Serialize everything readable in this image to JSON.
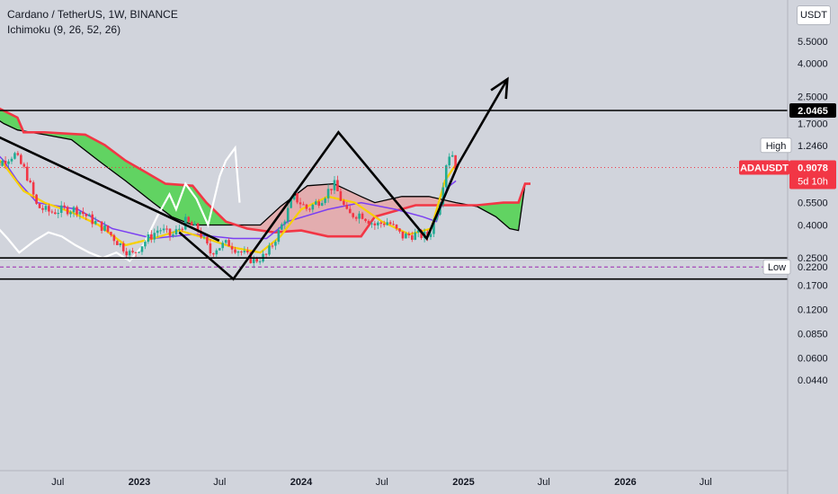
{
  "header": {
    "title": "Cardano / TetherUS, 1W, BINANCE",
    "indicator": "Ichimoku (9, 26, 52, 26)"
  },
  "currency_button": "USDT",
  "colors": {
    "background": "#d1d4dc",
    "candle_up": "#22ab94",
    "candle_down": "#f23645",
    "lagging_span": "#ffffff",
    "conversion_line": "#f7d000",
    "base_line": "#7b3ff2",
    "cloud_bull": "#5bd35b",
    "cloud_bear": "#e8a0a0",
    "leading_span_a": "#f23645",
    "leading_span_b": "#000000",
    "price_label": "#f23645"
  },
  "chart_data": {
    "type": "candlestick",
    "scale": "log",
    "ylim": [
      0.04,
      8.0
    ],
    "x_axis": {
      "tick_labels": [
        {
          "label": "Jul",
          "date": "2022-07-01"
        },
        {
          "label": "2023",
          "date": "2023-01-01"
        },
        {
          "label": "Jul",
          "date": "2023-07-01"
        },
        {
          "label": "2024",
          "date": "2024-01-01"
        },
        {
          "label": "Jul",
          "date": "2024-07-01"
        },
        {
          "label": "2025",
          "date": "2025-01-01"
        },
        {
          "label": "Jul",
          "date": "2025-07-01"
        },
        {
          "label": "2026",
          "date": "2026-01-01"
        },
        {
          "label": "Jul",
          "date": "2026-07-01"
        }
      ],
      "range": [
        "2022-01-15",
        "2026-10-20"
      ]
    },
    "y_axis": {
      "tick_labels": [
        "5.5000",
        "4.0000",
        "2.5000",
        "1.7000",
        "1.2460",
        "0.5500",
        "0.4000",
        "0.2500",
        "0.2200",
        "0.1700",
        "0.1200",
        "0.0850",
        "0.0600",
        "0.0440"
      ],
      "tick_values": [
        5.5,
        4.0,
        2.5,
        1.7,
        1.246,
        0.55,
        0.4,
        0.25,
        0.22,
        0.17,
        0.12,
        0.085,
        0.06,
        0.044
      ]
    },
    "price_labels": {
      "high_line": {
        "value": 2.0465,
        "label": "2.0465"
      },
      "high_marker": {
        "name": "High",
        "value": 1.246,
        "label": "1.2460"
      },
      "low_marker": {
        "name": "Low",
        "value": 0.22,
        "label": "0.2200"
      },
      "last_price": {
        "symbol": "ADAUSDT",
        "value": 0.9078,
        "label": "0.9078",
        "countdown": "5d 10h"
      }
    },
    "horizontal_levels": [
      2.0465,
      0.25,
      0.185
    ],
    "price_path": [
      [
        "2022-01-15",
        1.15
      ],
      [
        "2022-02-15",
        0.95
      ],
      [
        "2022-03-25",
        1.1
      ],
      [
        "2022-04-20",
        0.85
      ],
      [
        "2022-05-15",
        0.52
      ],
      [
        "2022-06-15",
        0.48
      ],
      [
        "2022-07-15",
        0.5
      ],
      [
        "2022-08-15",
        0.5
      ],
      [
        "2022-09-15",
        0.43
      ],
      [
        "2022-10-15",
        0.38
      ],
      [
        "2022-11-15",
        0.31
      ],
      [
        "2022-12-15",
        0.26
      ],
      [
        "2023-01-15",
        0.32
      ],
      [
        "2023-02-15",
        0.38
      ],
      [
        "2023-03-15",
        0.34
      ],
      [
        "2023-04-15",
        0.42
      ],
      [
        "2023-05-15",
        0.37
      ],
      [
        "2023-06-10",
        0.27
      ],
      [
        "2023-06-25",
        0.29
      ],
      [
        "2023-07-20",
        0.31
      ],
      [
        "2023-08-20",
        0.27
      ],
      [
        "2023-09-15",
        0.24
      ],
      [
        "2023-10-15",
        0.26
      ],
      [
        "2023-11-15",
        0.38
      ],
      [
        "2023-12-15",
        0.6
      ],
      [
        "2024-01-15",
        0.5
      ],
      [
        "2024-02-15",
        0.58
      ],
      [
        "2024-03-15",
        0.72
      ],
      [
        "2024-04-15",
        0.46
      ],
      [
        "2024-05-15",
        0.47
      ],
      [
        "2024-06-15",
        0.4
      ],
      [
        "2024-07-15",
        0.42
      ],
      [
        "2024-08-15",
        0.34
      ],
      [
        "2024-09-15",
        0.35
      ],
      [
        "2024-10-15",
        0.34
      ],
      [
        "2024-11-10",
        0.58
      ],
      [
        "2024-11-25",
        1.05
      ],
      [
        "2024-12-05",
        1.15
      ],
      [
        "2024-12-15",
        0.91
      ]
    ],
    "ichimoku": {
      "conversion_line": [
        [
          "2022-01-15",
          1.25
        ],
        [
          "2022-03-01",
          0.95
        ],
        [
          "2022-04-15",
          0.65
        ],
        [
          "2022-06-01",
          0.55
        ],
        [
          "2022-08-01",
          0.48
        ],
        [
          "2022-10-01",
          0.4
        ],
        [
          "2022-12-01",
          0.3
        ],
        [
          "2023-02-01",
          0.33
        ],
        [
          "2023-04-01",
          0.37
        ],
        [
          "2023-06-01",
          0.33
        ],
        [
          "2023-08-01",
          0.29
        ],
        [
          "2023-10-01",
          0.27
        ],
        [
          "2023-11-15",
          0.34
        ],
        [
          "2024-01-01",
          0.5
        ],
        [
          "2024-03-01",
          0.6
        ],
        [
          "2024-05-01",
          0.55
        ],
        [
          "2024-07-01",
          0.42
        ],
        [
          "2024-09-01",
          0.35
        ],
        [
          "2024-10-20",
          0.38
        ],
        [
          "2024-11-20",
          0.75
        ],
        [
          "2024-12-15",
          0.95
        ]
      ],
      "base_line": [
        [
          "2022-01-15",
          1.35
        ],
        [
          "2022-03-01",
          1.0
        ],
        [
          "2022-04-01",
          0.75
        ],
        [
          "2022-05-15",
          0.55
        ],
        [
          "2022-08-15",
          0.5
        ],
        [
          "2022-11-01",
          0.38
        ],
        [
          "2023-02-01",
          0.33
        ],
        [
          "2023-05-01",
          0.35
        ],
        [
          "2023-08-01",
          0.33
        ],
        [
          "2023-10-15",
          0.33
        ],
        [
          "2023-12-01",
          0.42
        ],
        [
          "2024-03-01",
          0.5
        ],
        [
          "2024-05-15",
          0.55
        ],
        [
          "2024-08-01",
          0.5
        ],
        [
          "2024-10-01",
          0.45
        ],
        [
          "2024-11-01",
          0.42
        ],
        [
          "2024-11-25",
          0.68
        ],
        [
          "2024-12-15",
          0.75
        ]
      ],
      "lagging_span": [
        [
          "2021-12-20",
          0.55
        ],
        [
          "2022-01-10",
          0.48
        ],
        [
          "2022-02-10",
          0.4
        ],
        [
          "2022-03-10",
          0.33
        ],
        [
          "2022-04-05",
          0.27
        ],
        [
          "2022-05-10",
          0.32
        ],
        [
          "2022-06-10",
          0.36
        ],
        [
          "2022-07-10",
          0.34
        ],
        [
          "2022-08-10",
          0.3
        ],
        [
          "2022-09-10",
          0.27
        ],
        [
          "2022-10-10",
          0.25
        ],
        [
          "2022-11-10",
          0.27
        ],
        [
          "2022-12-10",
          0.24
        ],
        [
          "2023-01-10",
          0.3
        ],
        [
          "2023-02-10",
          0.45
        ],
        [
          "2023-03-10",
          0.62
        ],
        [
          "2023-03-25",
          0.5
        ],
        [
          "2023-04-15",
          0.72
        ],
        [
          "2023-05-10",
          0.58
        ],
        [
          "2023-06-05",
          0.4
        ],
        [
          "2023-07-01",
          0.8
        ],
        [
          "2023-07-15",
          1.0
        ],
        [
          "2023-08-05",
          1.2
        ],
        [
          "2023-08-15",
          0.55
        ]
      ],
      "leading_span_a": [
        [
          "2022-01-15",
          1.95
        ],
        [
          "2022-02-20",
          2.1
        ],
        [
          "2022-04-01",
          1.85
        ],
        [
          "2022-04-15",
          1.5
        ],
        [
          "2022-06-01",
          1.5
        ],
        [
          "2022-09-01",
          1.45
        ],
        [
          "2022-10-15",
          1.25
        ],
        [
          "2022-12-01",
          1.0
        ],
        [
          "2023-01-15",
          0.85
        ],
        [
          "2023-03-01",
          0.72
        ],
        [
          "2023-05-01",
          0.7
        ],
        [
          "2023-06-01",
          0.55
        ],
        [
          "2023-07-15",
          0.42
        ],
        [
          "2023-09-01",
          0.38
        ],
        [
          "2023-11-01",
          0.36
        ],
        [
          "2024-01-01",
          0.37
        ],
        [
          "2024-03-01",
          0.34
        ],
        [
          "2024-05-15",
          0.34
        ],
        [
          "2024-06-15",
          0.45
        ],
        [
          "2024-09-15",
          0.53
        ],
        [
          "2024-12-01",
          0.53
        ],
        [
          "2025-02-01",
          0.53
        ],
        [
          "2025-04-01",
          0.55
        ],
        [
          "2025-05-05",
          0.55
        ],
        [
          "2025-05-20",
          0.72
        ],
        [
          "2025-06-01",
          0.72
        ]
      ],
      "leading_span_b": [
        [
          "2022-01-15",
          2.05
        ],
        [
          "2022-03-01",
          1.7
        ],
        [
          "2022-04-01",
          1.55
        ],
        [
          "2022-06-01",
          1.45
        ],
        [
          "2022-08-01",
          1.35
        ],
        [
          "2022-10-01",
          1.0
        ],
        [
          "2022-12-01",
          0.75
        ],
        [
          "2023-02-01",
          0.55
        ],
        [
          "2023-03-15",
          0.45
        ],
        [
          "2023-05-01",
          0.4
        ],
        [
          "2023-08-01",
          0.4
        ],
        [
          "2023-10-01",
          0.4
        ],
        [
          "2023-11-15",
          0.52
        ],
        [
          "2024-01-15",
          0.7
        ],
        [
          "2024-03-15",
          0.72
        ],
        [
          "2024-05-15",
          0.6
        ],
        [
          "2024-06-15",
          0.55
        ],
        [
          "2024-08-15",
          0.6
        ],
        [
          "2024-10-15",
          0.6
        ],
        [
          "2024-12-15",
          0.55
        ],
        [
          "2025-02-01",
          0.52
        ],
        [
          "2025-03-15",
          0.45
        ],
        [
          "2025-04-15",
          0.38
        ],
        [
          "2025-05-05",
          0.37
        ],
        [
          "2025-05-20",
          0.72
        ]
      ]
    },
    "drawings": [
      {
        "type": "line",
        "points": [
          [
            "2022-01-15",
            1.55
          ],
          [
            "2023-06-30",
            0.32
          ]
        ]
      },
      {
        "type": "polyline",
        "points": [
          [
            "2023-04-01",
            0.36
          ],
          [
            "2023-08-01",
            0.185
          ],
          [
            "2024-03-25",
            1.5
          ],
          [
            "2024-10-10",
            0.33
          ],
          [
            "2024-12-20",
            0.95
          ],
          [
            "2025-04-10",
            3.2
          ]
        ]
      },
      {
        "type": "arrow-head",
        "at": [
          "2025-04-10",
          3.2
        ]
      }
    ]
  }
}
